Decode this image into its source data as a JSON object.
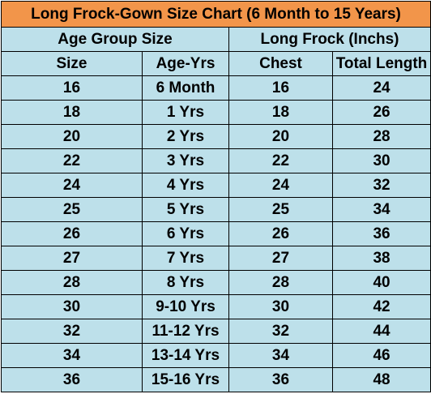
{
  "title": "Long Frock-Gown Size Chart  (6 Month to 15 Years)",
  "group_headers": [
    "Age Group Size",
    "Long Frock (Inchs)"
  ],
  "column_headers": [
    "Size",
    "Age-Yrs",
    "Chest",
    "Total Length"
  ],
  "rows": [
    [
      "16",
      "6 Month",
      "16",
      "24"
    ],
    [
      "18",
      "1 Yrs",
      "18",
      "26"
    ],
    [
      "20",
      "2 Yrs",
      "20",
      "28"
    ],
    [
      "22",
      "3 Yrs",
      "22",
      "30"
    ],
    [
      "24",
      "4 Yrs",
      "24",
      "32"
    ],
    [
      "25",
      "5 Yrs",
      "25",
      "34"
    ],
    [
      "26",
      "6 Yrs",
      "26",
      "36"
    ],
    [
      "27",
      "7 Yrs",
      "27",
      "38"
    ],
    [
      "28",
      "8 Yrs",
      "28",
      "40"
    ],
    [
      "30",
      "9-10 Yrs",
      "30",
      "42"
    ],
    [
      "32",
      "11-12 Yrs",
      "32",
      "44"
    ],
    [
      "34",
      "13-14 Yrs",
      "34",
      "46"
    ],
    [
      "36",
      "15-16 Yrs",
      "36",
      "48"
    ]
  ],
  "colors": {
    "title_bg": "#f2954a",
    "cell_bg": "#bde0ea",
    "border": "#000000"
  }
}
